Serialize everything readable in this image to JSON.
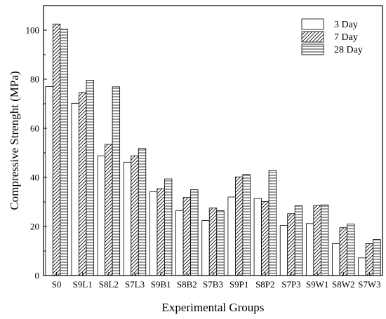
{
  "chart_data": {
    "type": "bar",
    "title": "",
    "xlabel": "Experimental Groups",
    "ylabel": "Compressive Strenght (MPa)",
    "ylim": [
      0,
      110
    ],
    "yticks": [
      0,
      20,
      40,
      60,
      80,
      100
    ],
    "grid": false,
    "legend_position": "top-right",
    "categories": [
      "S0",
      "S9L1",
      "S8L2",
      "S7L3",
      "S9B1",
      "S8B2",
      "S7B3",
      "S9P1",
      "S8P2",
      "S7P3",
      "S9W1",
      "S8W2",
      "S7W3"
    ],
    "series": [
      {
        "name": "3 Day",
        "pattern": "blank",
        "values": [
          77.0,
          70.2,
          48.8,
          46.2,
          34.2,
          26.5,
          22.4,
          32.0,
          31.4,
          20.4,
          21.2,
          13.0,
          7.2
        ]
      },
      {
        "name": "7 Day",
        "pattern": "diagonal-hatch",
        "values": [
          102.5,
          74.6,
          53.5,
          48.8,
          35.4,
          31.8,
          27.5,
          40.2,
          30.2,
          25.2,
          28.5,
          19.5,
          13.0
        ]
      },
      {
        "name": "28 Day",
        "pattern": "horizontal-hatch",
        "values": [
          100.4,
          79.6,
          76.9,
          51.8,
          39.4,
          35.0,
          26.4,
          41.2,
          42.8,
          28.4,
          28.8,
          21.0,
          14.7
        ]
      }
    ]
  }
}
